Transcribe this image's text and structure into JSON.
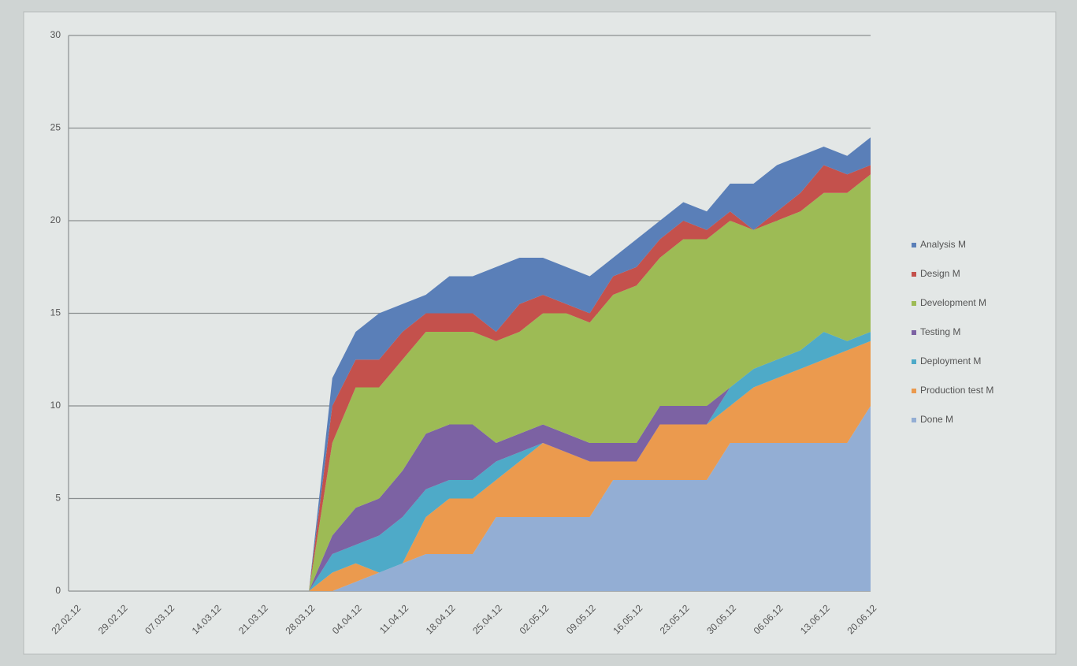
{
  "chart_data": {
    "type": "area",
    "stacked": true,
    "grid": true,
    "categories": [
      "22.02.12",
      null,
      "29.02.12",
      null,
      "07.03.12",
      null,
      "14.03.12",
      null,
      "21.03.12",
      null,
      "28.03.12",
      null,
      "04.04.12",
      null,
      "11.04.12",
      null,
      "18.04.12",
      null,
      "25.04.12",
      null,
      "02.05.12",
      null,
      "09.05.12",
      null,
      "16.05.12",
      null,
      "23.05.12",
      null,
      "30.05.12",
      null,
      "06.06.12",
      null,
      "13.06.12",
      null,
      "20.06.12"
    ],
    "ylim": [
      0,
      30
    ],
    "yticks": [
      0,
      5,
      10,
      15,
      20,
      25,
      30
    ],
    "series": [
      {
        "name": "Analysis M",
        "color": "#5a7fb8",
        "values": [
          0,
          0,
          0,
          0,
          0,
          0,
          0,
          0,
          0,
          0,
          0,
          1.5,
          1.5,
          2.5,
          1.5,
          1,
          2,
          2,
          3.5,
          2.5,
          2,
          2,
          2,
          1,
          1.5,
          1,
          1,
          1,
          1.5,
          2.5,
          2.5,
          2,
          1,
          1,
          1.5
        ]
      },
      {
        "name": "Design M",
        "color": "#c4514c",
        "values": [
          0,
          0,
          0,
          0,
          0,
          0,
          0,
          0,
          0,
          0,
          0,
          2,
          1.5,
          1.5,
          1.5,
          1,
          1,
          1,
          0.5,
          1.5,
          1,
          0.5,
          0.5,
          1,
          1,
          1,
          1,
          0.5,
          0.5,
          0,
          0.5,
          1,
          1.5,
          1,
          0.5
        ]
      },
      {
        "name": "Development M",
        "color": "#9dbb55",
        "values": [
          0,
          0,
          0,
          0,
          0,
          0,
          0,
          0,
          0,
          0,
          0,
          5,
          6.5,
          6,
          6,
          5.5,
          5,
          5,
          5.5,
          5.5,
          6,
          6.5,
          6.5,
          8,
          8.5,
          8,
          9,
          9,
          9,
          7.5,
          7.5,
          7.5,
          7.5,
          8,
          8.5
        ]
      },
      {
        "name": "Testing M",
        "color": "#7c62a3",
        "values": [
          0,
          0,
          0,
          0,
          0,
          0,
          0,
          0,
          0,
          0,
          0,
          1,
          2,
          2,
          2.5,
          3,
          3,
          3,
          1,
          1,
          1,
          1,
          1,
          1,
          1,
          1,
          1,
          1,
          0,
          0,
          0,
          0,
          0,
          0,
          0
        ]
      },
      {
        "name": "Deployment M",
        "color": "#4eaac8",
        "values": [
          0,
          0,
          0,
          0,
          0,
          0,
          0,
          0,
          0,
          0,
          0,
          1,
          1,
          2,
          2.5,
          1.5,
          1,
          1,
          1,
          0.5,
          0,
          0,
          0,
          0,
          0,
          0,
          0,
          0,
          1,
          1,
          1,
          1,
          1.5,
          0.5,
          0.5
        ]
      },
      {
        "name": "Production test M",
        "color": "#eb9a4e",
        "values": [
          0,
          0,
          0,
          0,
          0,
          0,
          0,
          0,
          0,
          0,
          0,
          1,
          1,
          0,
          0,
          2,
          3,
          3,
          2,
          3,
          4,
          3.5,
          3,
          1,
          1,
          3,
          3,
          3,
          2,
          3,
          3.5,
          4,
          4.5,
          5,
          3.5
        ]
      },
      {
        "name": "Done M",
        "color": "#93aed4",
        "values": [
          0,
          0,
          0,
          0,
          0,
          0,
          0,
          0,
          0,
          0,
          0,
          0,
          0.5,
          1,
          1.5,
          2,
          2,
          2,
          4,
          4,
          4,
          4,
          4,
          6,
          6,
          6,
          6,
          6,
          8,
          8,
          8,
          8,
          8,
          8,
          10
        ]
      }
    ]
  }
}
